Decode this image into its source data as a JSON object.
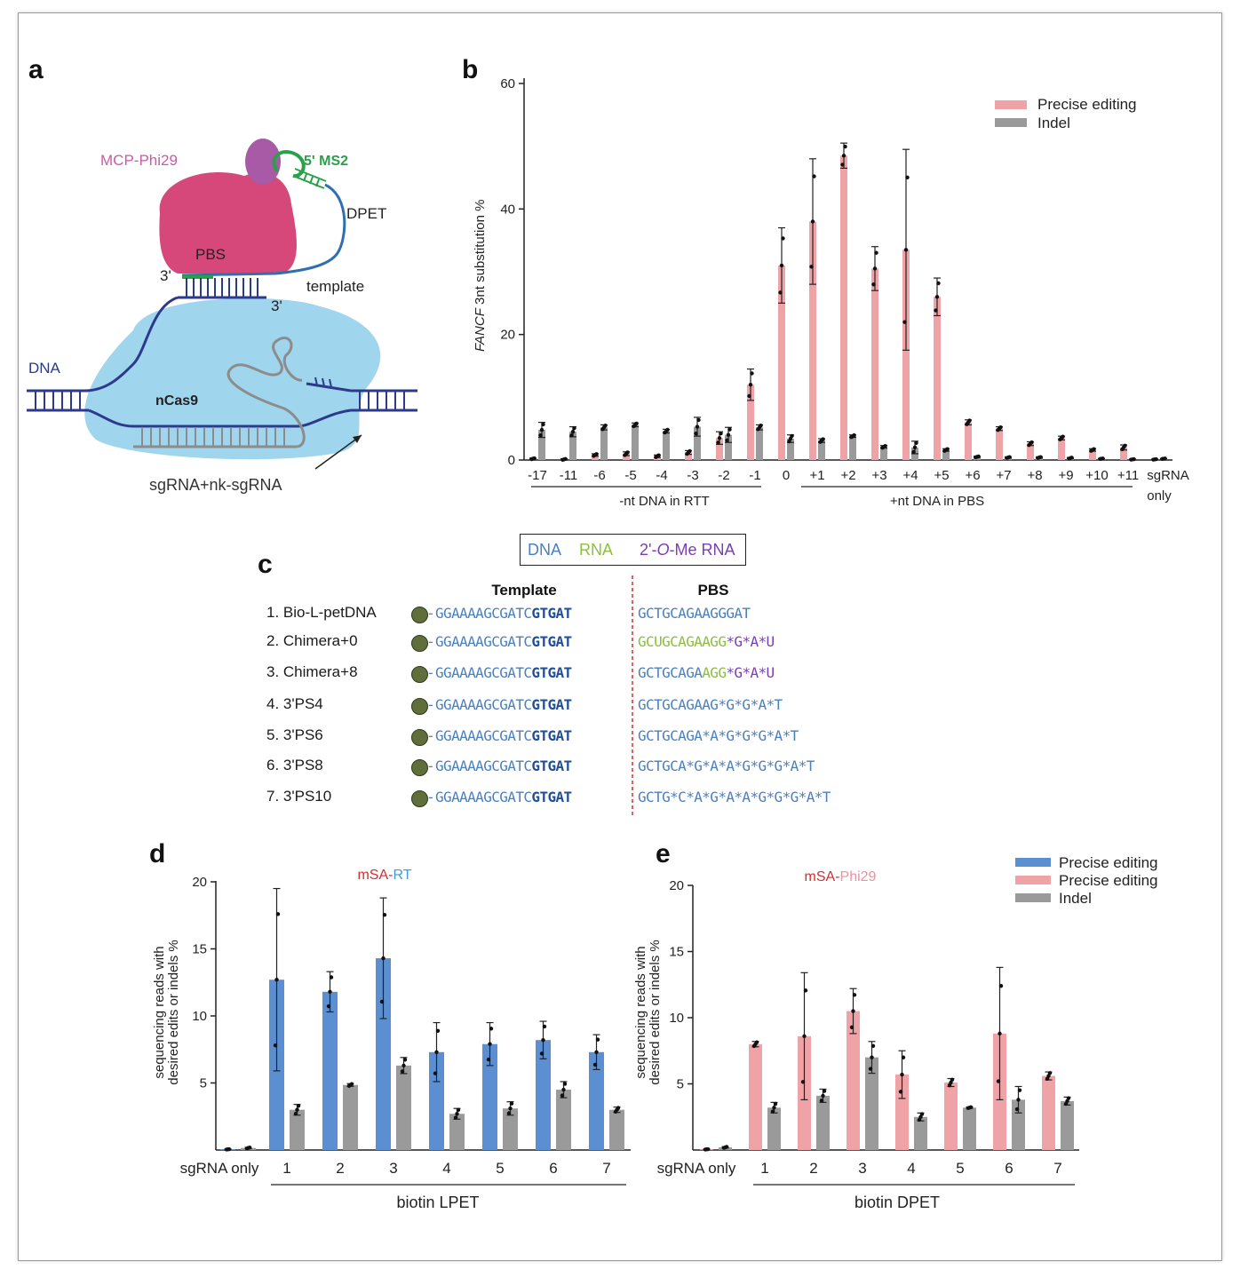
{
  "panels": {
    "a": "a",
    "b": "b",
    "c": "c",
    "d": "d",
    "e": "e"
  },
  "schematic": {
    "mcp_label": "MCP-Phi29",
    "ms2_label": "5' MS2",
    "dpet_label": "DPET",
    "pbs_label": "PBS",
    "three_prime_1": "3'",
    "three_prime_2": "3'",
    "template_label": "template",
    "dna_label": "DNA",
    "ncas9_label": "nCas9",
    "sgrna_label": "sgRNA+nk-sgRNA",
    "colors": {
      "protein": "#d6487a",
      "protein_top": "#a85aa6",
      "cas9": "#9fd6ee",
      "dna": "#2d3a8c",
      "rna_green": "#2aa04a",
      "rna_blue": "#2f6fb0",
      "sgrna": "#8c8c8c"
    }
  },
  "legend_b": {
    "precise": "Precise editing",
    "indel": "Indel"
  },
  "legend_box": {
    "dna": "DNA",
    "rna": "RNA",
    "ome_prefix": "2'-",
    "ome_italic": "O",
    "ome_suffix": "-Me RNA"
  },
  "sequence_table": {
    "header_template": "Template",
    "header_pbs": "PBS",
    "rows": [
      {
        "name": "1. Bio-L-petDNA",
        "tpl_a": "GGAAAAGCGATC",
        "tpl_b": "GTGAT",
        "pbs": [
          [
            "dna",
            "GCTGCAGAAGGGAT"
          ]
        ]
      },
      {
        "name": "2. Chimera+0",
        "tpl_a": "GGAAAAGCGATC",
        "tpl_b": "GTGAT",
        "pbs": [
          [
            "rna",
            "GCUGCAGAAGG"
          ],
          [
            "ome",
            "*G*A*U"
          ]
        ]
      },
      {
        "name": "3. Chimera+8",
        "tpl_a": "GGAAAAGCGATC",
        "tpl_b": "GTGAT",
        "pbs": [
          [
            "dna",
            "GCTGCAGA"
          ],
          [
            "rna",
            "AGG"
          ],
          [
            "ome",
            "*G*A*U"
          ]
        ]
      },
      {
        "name": "4. 3'PS4",
        "tpl_a": "GGAAAAGCGATC",
        "tpl_b": "GTGAT",
        "pbs": [
          [
            "dna",
            "GCTGCAGAAG*G*G*A*T"
          ]
        ]
      },
      {
        "name": "5. 3'PS6",
        "tpl_a": "GGAAAAGCGATC",
        "tpl_b": "GTGAT",
        "pbs": [
          [
            "dna",
            "GCTGCAGA*A*G*G*G*A*T"
          ]
        ]
      },
      {
        "name": "6. 3'PS8",
        "tpl_a": "GGAAAAGCGATC",
        "tpl_b": "GTGAT",
        "pbs": [
          [
            "dna",
            "GCTGCA*G*A*A*G*G*G*A*T"
          ]
        ]
      },
      {
        "name": "7. 3'PS10",
        "tpl_a": "GGAAAAGCGATC",
        "tpl_b": "GTGAT",
        "pbs": [
          [
            "dna",
            "GCTG*C*A*G*A*A*G*G*G*A*T"
          ]
        ]
      }
    ]
  },
  "chart_data": [
    {
      "id": "b",
      "type": "bar",
      "ylabel_italic": "FANCF",
      "ylabel": " 3nt substitution %",
      "ylim": [
        0,
        60
      ],
      "yticks": [
        0,
        20,
        40,
        60
      ],
      "categories": [
        "-17",
        "-11",
        "-6",
        "-5",
        "-4",
        "-3",
        "-2",
        "-1",
        "0",
        "+1",
        "+2",
        "+3",
        "+4",
        "+5",
        "+6",
        "+7",
        "+8",
        "+9",
        "+10",
        "+11",
        "sgRNA"
      ],
      "last_category_line2": "only",
      "group_labels": [
        "-nt DNA in RTT",
        "+nt DNA in PBS"
      ],
      "series": [
        {
          "name": "Precise editing",
          "color": "#f0a3a7",
          "values": [
            0.2,
            0.1,
            0.8,
            1.0,
            0.6,
            1.2,
            3.5,
            12,
            31,
            38,
            48.5,
            30.5,
            33.5,
            26,
            6,
            5,
            2.6,
            3.5,
            1.6,
            2.0,
            0.1
          ],
          "errors": [
            0.1,
            0.1,
            0.2,
            0.3,
            0.2,
            0.3,
            1.0,
            2.5,
            6,
            10,
            2,
            3.5,
            16,
            3,
            0.4,
            0.3,
            0.3,
            0.3,
            0.2,
            0.4,
            0.05
          ]
        },
        {
          "name": "Indel",
          "color": "#9a9a9a",
          "values": [
            4.8,
            4.5,
            5.2,
            5.6,
            4.6,
            5.3,
            4.0,
            5.2,
            3.4,
            3.1,
            3.8,
            2.1,
            2.0,
            1.6,
            0.5,
            0.4,
            0.4,
            0.3,
            0.2,
            0.1,
            0.2
          ],
          "errors": [
            1.2,
            0.8,
            0.4,
            0.3,
            0.3,
            1.5,
            1.2,
            0.4,
            0.6,
            0.3,
            0.2,
            0.2,
            1.0,
            0.2,
            0.1,
            0.1,
            0.1,
            0.1,
            0.05,
            0.05,
            0.05
          ]
        }
      ]
    },
    {
      "id": "d",
      "type": "bar",
      "title_a": "mSA-",
      "title_b": "RT",
      "ylabel_line1": "sequencing reads with",
      "ylabel_line2": "desired edits or indels %",
      "ylim": [
        0,
        20
      ],
      "yticks": [
        5,
        10,
        15,
        20
      ],
      "categories": [
        "sgRNA only",
        "1",
        "2",
        "3",
        "4",
        "5",
        "6",
        "7"
      ],
      "group_label": "biotin LPET",
      "series": [
        {
          "name": "Precise editing",
          "color": "#5b8fd1",
          "values": [
            0.05,
            12.7,
            11.8,
            14.3,
            7.3,
            7.9,
            8.2,
            7.3
          ],
          "errors": [
            0.02,
            6.8,
            1.5,
            4.5,
            2.2,
            1.6,
            1.4,
            1.3
          ]
        },
        {
          "name": "Indel",
          "color": "#9a9a9a",
          "values": [
            0.15,
            3.0,
            4.85,
            6.3,
            2.7,
            3.1,
            4.5,
            3.0
          ],
          "errors": [
            0.05,
            0.4,
            0.1,
            0.6,
            0.4,
            0.5,
            0.6,
            0.2
          ]
        }
      ]
    },
    {
      "id": "e",
      "type": "bar",
      "title_a": "mSA-",
      "title_b": "Phi29",
      "ylabel_line1": "sequencing reads with",
      "ylabel_line2": "desired edits or indels %",
      "ylim": [
        0,
        20
      ],
      "yticks": [
        5,
        10,
        15,
        20
      ],
      "categories": [
        "sgRNA only",
        "1",
        "2",
        "3",
        "4",
        "5",
        "6",
        "7"
      ],
      "group_label": "biotin DPET",
      "legend": [
        "Precise editing",
        "Precise editing",
        "Indel"
      ],
      "legend_colors": [
        "#5b8fd1",
        "#f0a3a7",
        "#9a9a9a"
      ],
      "series": [
        {
          "name": "Precise editing",
          "color": "#f0a3a7",
          "values": [
            0.05,
            8.0,
            8.6,
            10.5,
            5.7,
            5.1,
            8.8,
            5.6
          ],
          "errors": [
            0.02,
            0.2,
            4.8,
            1.7,
            1.8,
            0.3,
            5.0,
            0.3
          ]
        },
        {
          "name": "Indel",
          "color": "#9a9a9a",
          "values": [
            0.2,
            3.2,
            4.1,
            7.0,
            2.5,
            3.2,
            3.8,
            3.7
          ],
          "errors": [
            0.05,
            0.4,
            0.5,
            1.2,
            0.3,
            0.05,
            1.0,
            0.3
          ]
        }
      ]
    }
  ]
}
